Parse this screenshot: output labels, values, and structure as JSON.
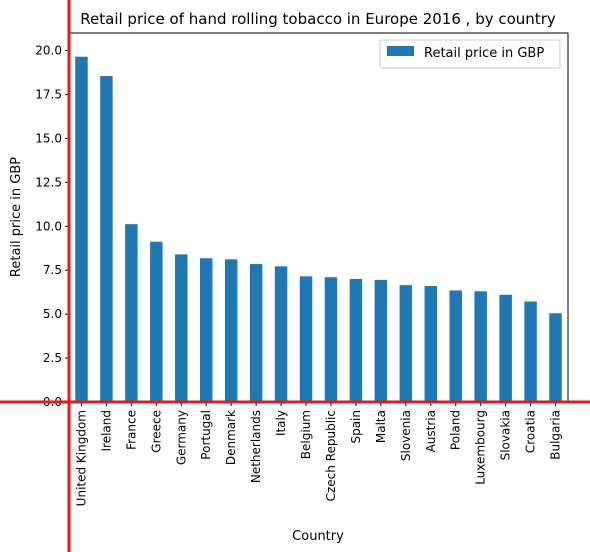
{
  "chart_data": {
    "type": "bar",
    "title": "Retail price of hand rolling tobacco in Europe 2016 , by country",
    "xlabel": "Country",
    "ylabel": "Retail price in GBP",
    "ylim": [
      0,
      21.0
    ],
    "yticks": [
      "0.0",
      "2.5",
      "5.0",
      "7.5",
      "10.0",
      "12.5",
      "15.0",
      "17.5",
      "20.0"
    ],
    "grid": false,
    "legend_position": "top-right",
    "categories": [
      "United Kingdom",
      "Ireland",
      "France",
      "Greece",
      "Germany",
      "Portugal",
      "Denmark",
      "Netherlands",
      "Italy",
      "Belgium",
      "Czech Republic",
      "Spain",
      "Malta",
      "Slovenia",
      "Austria",
      "Poland",
      "Luxembourg",
      "Slovakia",
      "Croatia",
      "Bulgaria"
    ],
    "series": [
      {
        "name": "Retail price in GBP",
        "color": "#1f77b4",
        "values": [
          19.65,
          18.55,
          10.12,
          9.12,
          8.4,
          8.18,
          8.12,
          7.85,
          7.72,
          7.15,
          7.1,
          7.0,
          6.95,
          6.65,
          6.6,
          6.35,
          6.3,
          6.1,
          5.72,
          5.05
        ]
      }
    ],
    "crosshair_color": "#e31a1c"
  }
}
